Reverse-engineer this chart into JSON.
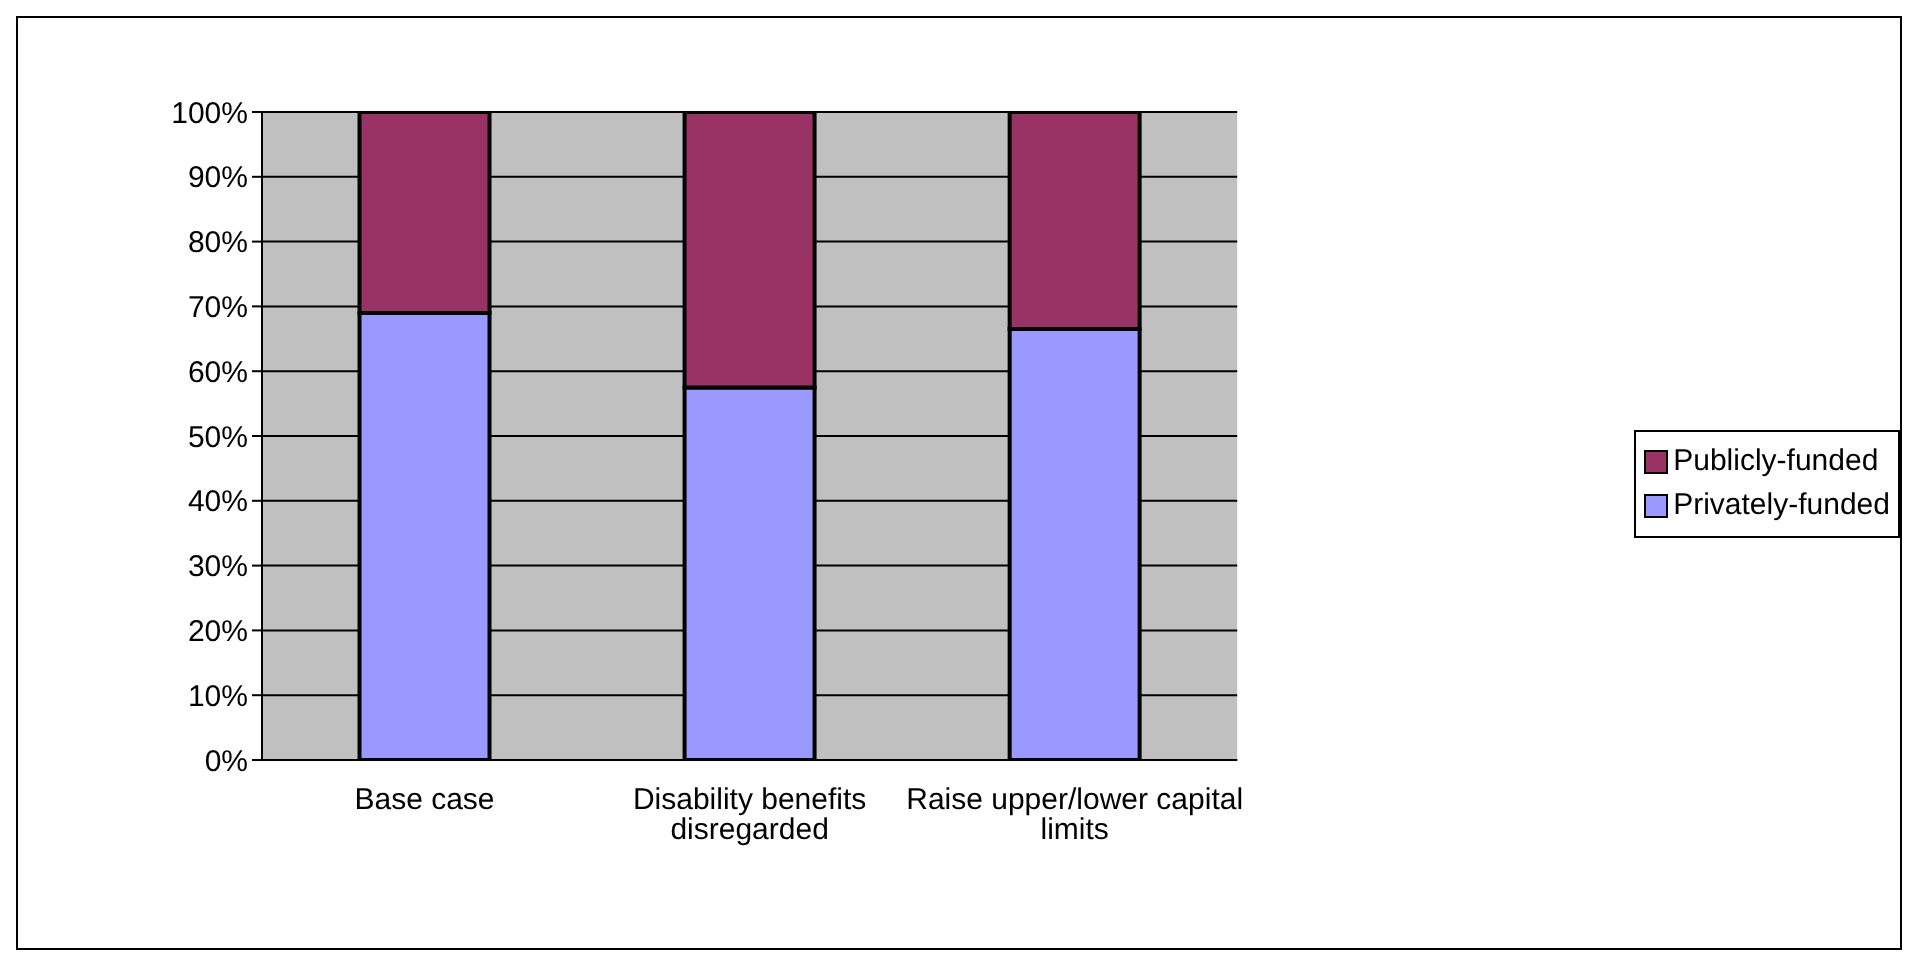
{
  "chart_data": {
    "type": "bar",
    "stacked": true,
    "categories": [
      "Base case",
      "Disability benefits disregarded",
      "Raise upper/lower capital limits"
    ],
    "series": [
      {
        "name": "Privately-funded",
        "color": "#9999ff",
        "values": [
          69,
          57.5,
          66.5
        ]
      },
      {
        "name": "Publicly-funded",
        "color": "#993366",
        "values": [
          31,
          42.5,
          33.5
        ]
      }
    ],
    "ylim": [
      0,
      100
    ],
    "yticks": [
      {
        "value": 0,
        "label": "0%"
      },
      {
        "value": 10,
        "label": "10%"
      },
      {
        "value": 20,
        "label": "20%"
      },
      {
        "value": 30,
        "label": "30%"
      },
      {
        "value": 40,
        "label": "40%"
      },
      {
        "value": 50,
        "label": "50%"
      },
      {
        "value": 60,
        "label": "60%"
      },
      {
        "value": 70,
        "label": "70%"
      },
      {
        "value": 80,
        "label": "80%"
      },
      {
        "value": 90,
        "label": "90%"
      },
      {
        "value": 100,
        "label": "100%"
      }
    ],
    "grid": "y",
    "legend": "right"
  }
}
